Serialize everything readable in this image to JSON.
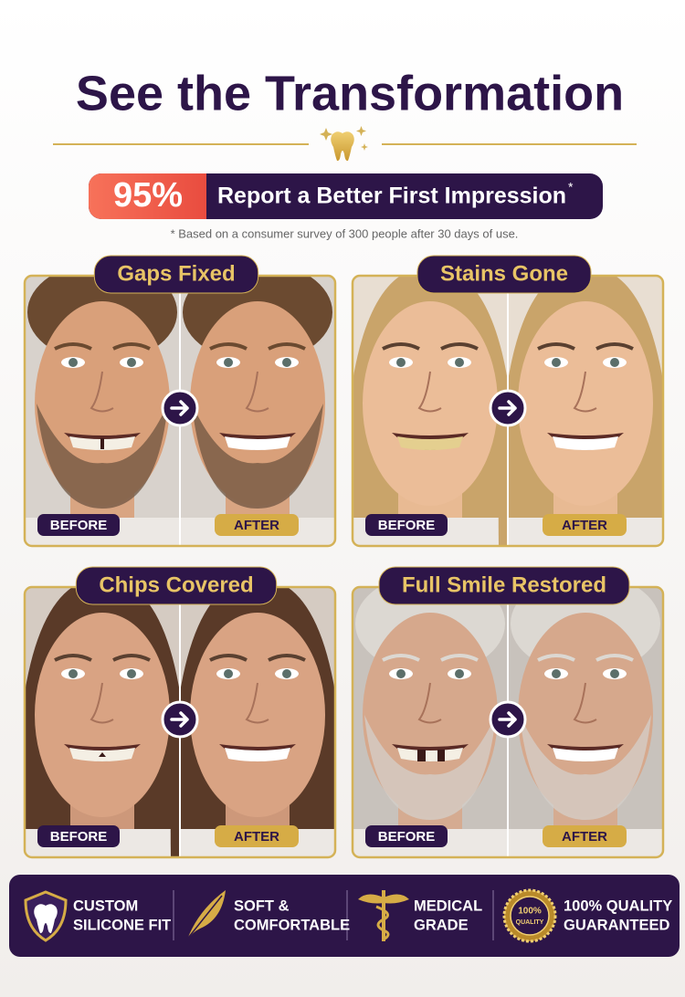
{
  "title": "See the Transformation",
  "stat": {
    "value": "95%",
    "text": "Report a Better First Impression",
    "mark": "*"
  },
  "footnote": "* Based on a consumer survey of 300 people after 30 days of use.",
  "panels": [
    {
      "title": "Gaps Fixed",
      "before": "BEFORE",
      "after": "AFTER"
    },
    {
      "title": "Stains Gone",
      "before": "BEFORE",
      "after": "AFTER"
    },
    {
      "title": "Chips Covered",
      "before": "BEFORE",
      "after": "AFTER"
    },
    {
      "title": "Full Smile Restored",
      "before": "BEFORE",
      "after": "AFTER"
    }
  ],
  "features": [
    {
      "lines": [
        "CUSTOM",
        "SILICONE FIT"
      ]
    },
    {
      "lines": [
        "SOFT &",
        "COMFORTABLE"
      ]
    },
    {
      "lines": [
        "MEDICAL",
        "GRADE"
      ]
    },
    {
      "lines": [
        "100% QUALITY",
        "GUARANTEED"
      ],
      "badge": [
        "100%",
        "QUALITY"
      ]
    }
  ]
}
